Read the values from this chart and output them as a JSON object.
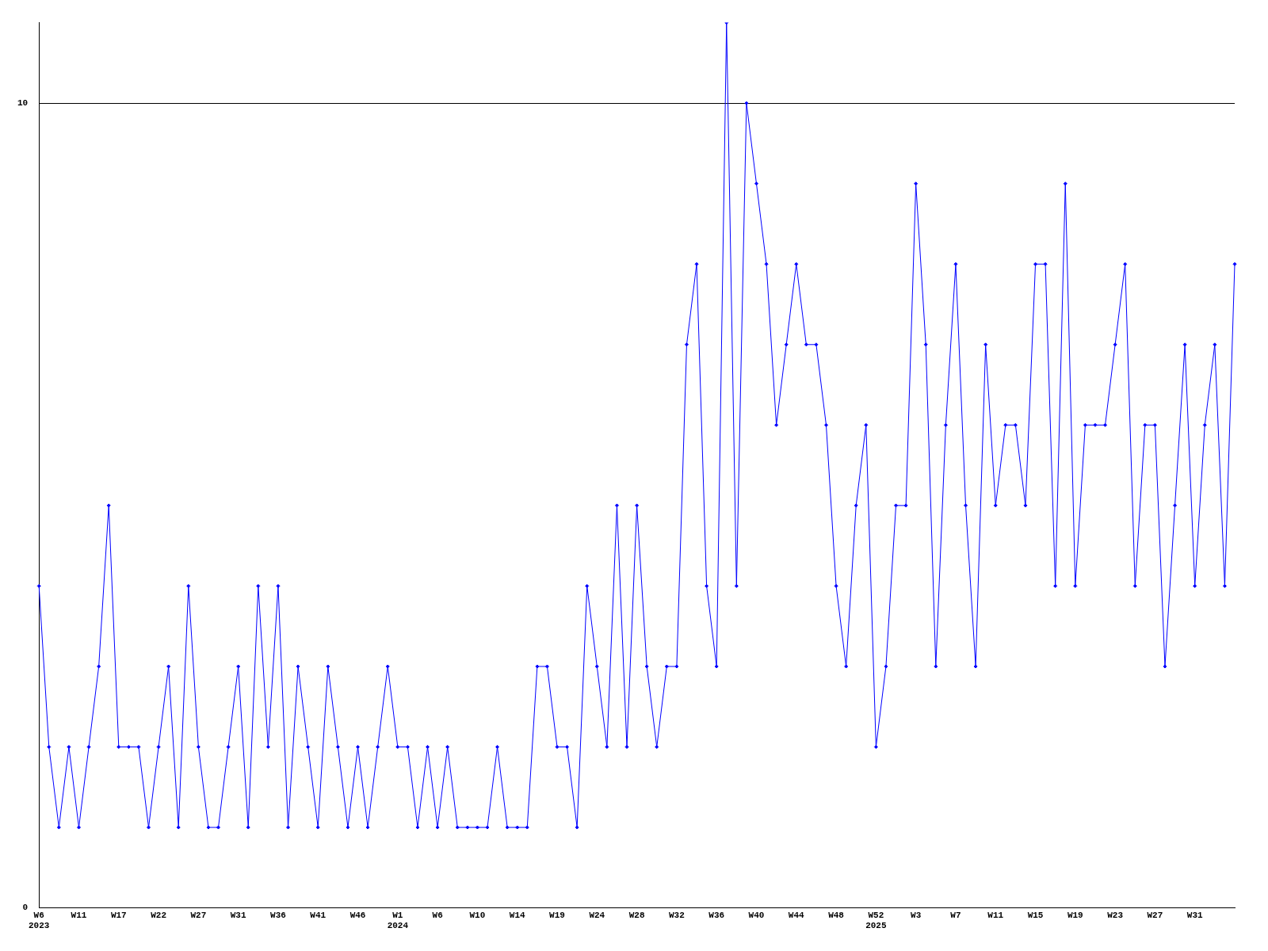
{
  "chart_data": {
    "type": "line",
    "categories": [
      "W6\n2023",
      null,
      null,
      null,
      "W11",
      null,
      null,
      null,
      "W17",
      null,
      null,
      null,
      "W22",
      null,
      null,
      null,
      "W27",
      null,
      null,
      null,
      "W31",
      null,
      null,
      null,
      "W36",
      null,
      null,
      null,
      "W41",
      null,
      null,
      null,
      "W46",
      null,
      null,
      null,
      "W1\n2024",
      null,
      null,
      null,
      "W6",
      null,
      null,
      null,
      "W10",
      null,
      null,
      null,
      "W14",
      null,
      null,
      null,
      "W19",
      null,
      null,
      null,
      "W24",
      null,
      null,
      null,
      "W28",
      null,
      null,
      null,
      "W32",
      null,
      null,
      null,
      "W36",
      null,
      null,
      null,
      "W40",
      null,
      null,
      null,
      "W44",
      null,
      null,
      null,
      "W48",
      null,
      null,
      null,
      "W52\n2025",
      null,
      null,
      null,
      "W3",
      null,
      null,
      null,
      "W7",
      null,
      null,
      null,
      "W11",
      null,
      null,
      null,
      "W15",
      null,
      null,
      null,
      "W19",
      null,
      null,
      null,
      "W23",
      null,
      null,
      null,
      "W27",
      null,
      null,
      null,
      "W31",
      null,
      null,
      null,
      null
    ],
    "series": [
      {
        "color": "#0000ff",
        "values": [
          4,
          2,
          1,
          2,
          1,
          2,
          3,
          5,
          2,
          2,
          2,
          1,
          2,
          3,
          1,
          4,
          2,
          1,
          1,
          2,
          3,
          1,
          4,
          2,
          4,
          1,
          3,
          2,
          1,
          3,
          2,
          1,
          2,
          1,
          2,
          3,
          2,
          2,
          1,
          2,
          1,
          2,
          1,
          1,
          1,
          1,
          2,
          1,
          1,
          1,
          3,
          3,
          2,
          2,
          1,
          4,
          3,
          2,
          5,
          2,
          5,
          3,
          2,
          3,
          3,
          7,
          8,
          4,
          3,
          11,
          4,
          10,
          9,
          8,
          6,
          7,
          8,
          7,
          7,
          6,
          4,
          3,
          5,
          6,
          2,
          3,
          5,
          5,
          9,
          7,
          3,
          6,
          8,
          5,
          3,
          7,
          5,
          6,
          6,
          5,
          8,
          8,
          4,
          9,
          4,
          6,
          6,
          6,
          7,
          8,
          4,
          6,
          6,
          3,
          5,
          7,
          4,
          6,
          7,
          4,
          8
        ]
      }
    ],
    "ylim": [
      0,
      11
    ],
    "yticks": [
      0,
      10
    ],
    "grid": "y",
    "legend": false,
    "marker": "diamond",
    "line_style": "solid"
  }
}
